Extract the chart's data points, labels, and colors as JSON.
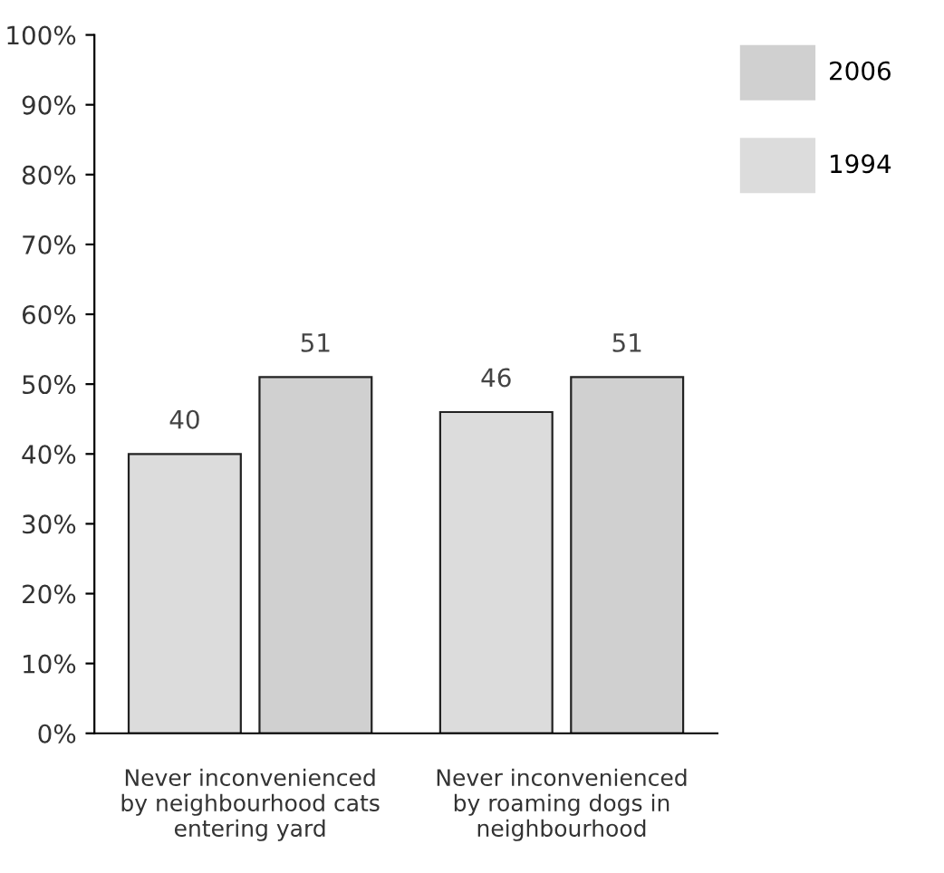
{
  "chart_data": {
    "type": "bar",
    "categories": [
      "Never inconvenienced\nby neighbourhood cats\nentering yard",
      "Never inconvenienced\nby roaming dogs in\nneighbourhood"
    ],
    "series": [
      {
        "name": "1994",
        "color": "#dcdcdc",
        "values": [
          40,
          46
        ]
      },
      {
        "name": "2006",
        "color": "#d0d0d0",
        "values": [
          51,
          51
        ]
      }
    ],
    "ylim": [
      0,
      100
    ],
    "yticks": [
      {
        "value": 0,
        "label": "0%"
      },
      {
        "value": 10,
        "label": "10%"
      },
      {
        "value": 20,
        "label": "20%"
      },
      {
        "value": 30,
        "label": "30%"
      },
      {
        "value": 40,
        "label": "40%"
      },
      {
        "value": 50,
        "label": "50%"
      },
      {
        "value": 60,
        "label": "60%"
      },
      {
        "value": 70,
        "label": "70%"
      },
      {
        "value": 80,
        "label": "80%"
      },
      {
        "value": 90,
        "label": "90%"
      },
      {
        "value": 100,
        "label": "100%"
      }
    ],
    "data_labels": true,
    "grid": false,
    "legend": "top right"
  }
}
